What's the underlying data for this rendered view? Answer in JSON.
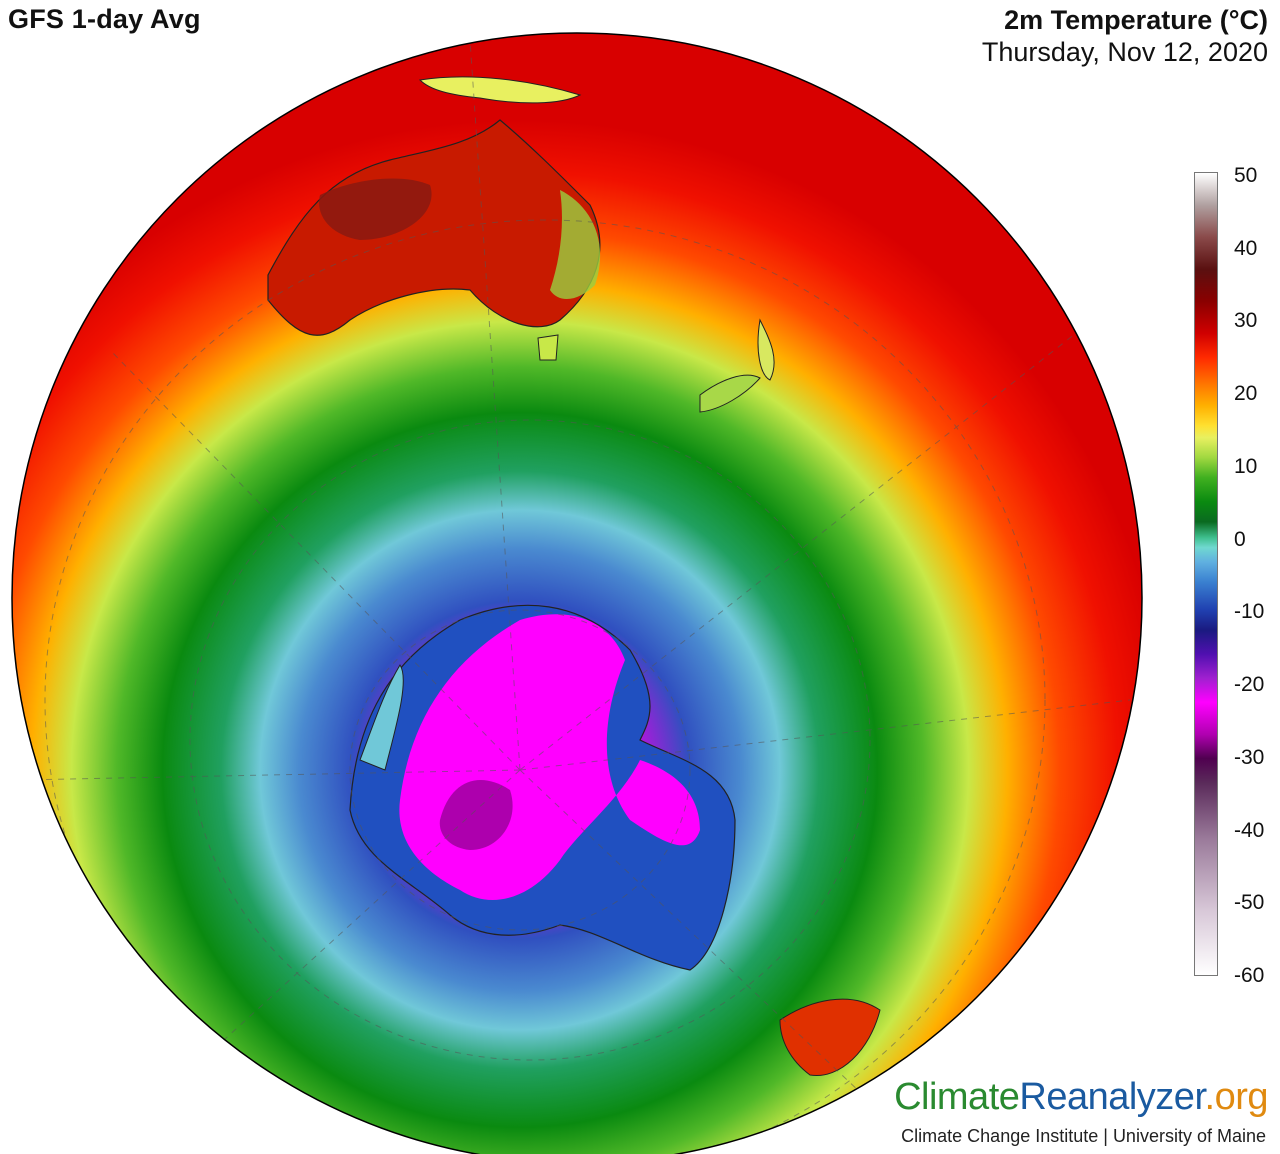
{
  "header": {
    "model_title": "GFS 1-day Avg",
    "variable": "2m Temperature (°C)",
    "date": "Thursday, Nov 12, 2020"
  },
  "colorbar": {
    "ticks": [
      "50",
      "40",
      "30",
      "20",
      "10",
      "0",
      "-10",
      "-20",
      "-30",
      "-40",
      "-50",
      "-60"
    ],
    "min": -60,
    "max": 50
  },
  "branding": {
    "logo_part1": "Climate",
    "logo_part2": "Reanalyzer",
    "logo_part3": ".org",
    "subtitle": "Climate Change Institute | University of Maine"
  },
  "map": {
    "projection": "orthographic",
    "hemisphere": "southern",
    "regions_shown": [
      "Antarctica",
      "Australia",
      "New Zealand",
      "South America"
    ],
    "colors": {
      "hot": "#d00000",
      "warm": "#ff8a00",
      "mild": "#e8f060",
      "cool": "#0a8a10",
      "cold": "#3a80d0",
      "frigid": "#ff00ff"
    }
  }
}
